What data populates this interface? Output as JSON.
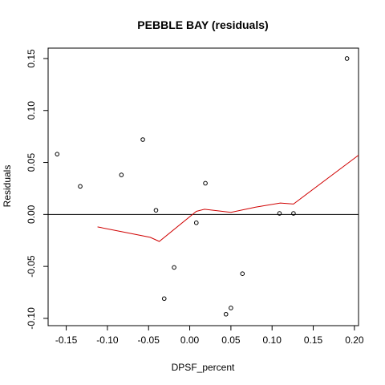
{
  "chart_data": {
    "type": "scatter",
    "title": "PEBBLE BAY (residuals)",
    "xlabel": "DPSF_percent",
    "ylabel": "Residuals",
    "xlim": [
      -0.172,
      0.205
    ],
    "ylim": [
      -0.107,
      0.16
    ],
    "x_ticks": [
      -0.15,
      -0.1,
      -0.05,
      0.0,
      0.05,
      0.1,
      0.15,
      0.2
    ],
    "x_tick_labels": [
      "-0.15",
      "-0.10",
      "-0.05",
      "0.00",
      "0.05",
      "0.10",
      "0.15",
      "0.20"
    ],
    "y_ticks": [
      -0.1,
      -0.05,
      0.0,
      0.05,
      0.1,
      0.15
    ],
    "y_tick_labels": [
      "-0.10",
      "-0.05",
      "0.00",
      "0.05",
      "0.10",
      "0.15"
    ],
    "grid": false,
    "reference_line": {
      "y": 0,
      "color": "#000000"
    },
    "points": [
      {
        "x": -0.161,
        "y": 0.058
      },
      {
        "x": -0.133,
        "y": 0.027
      },
      {
        "x": -0.083,
        "y": 0.038
      },
      {
        "x": -0.057,
        "y": 0.072
      },
      {
        "x": -0.041,
        "y": 0.004
      },
      {
        "x": -0.031,
        "y": -0.081
      },
      {
        "x": -0.019,
        "y": -0.051
      },
      {
        "x": 0.008,
        "y": -0.008
      },
      {
        "x": 0.019,
        "y": 0.03
      },
      {
        "x": 0.044,
        "y": -0.096
      },
      {
        "x": 0.05,
        "y": -0.09
      },
      {
        "x": 0.064,
        "y": -0.057
      },
      {
        "x": 0.109,
        "y": 0.001
      },
      {
        "x": 0.126,
        "y": 0.001
      },
      {
        "x": 0.191,
        "y": 0.15
      }
    ],
    "smooth_line": {
      "color": "#d00000",
      "points": [
        {
          "x": -0.112,
          "y": -0.012
        },
        {
          "x": -0.08,
          "y": -0.017
        },
        {
          "x": -0.048,
          "y": -0.022
        },
        {
          "x": -0.037,
          "y": -0.026
        },
        {
          "x": 0.008,
          "y": 0.003
        },
        {
          "x": 0.018,
          "y": 0.005
        },
        {
          "x": 0.05,
          "y": 0.002
        },
        {
          "x": 0.08,
          "y": 0.007
        },
        {
          "x": 0.11,
          "y": 0.011
        },
        {
          "x": 0.126,
          "y": 0.01
        },
        {
          "x": 0.205,
          "y": 0.057
        }
      ]
    }
  }
}
